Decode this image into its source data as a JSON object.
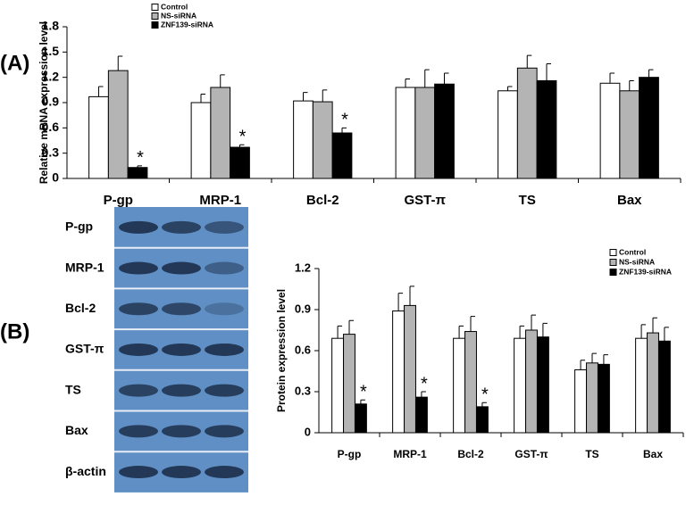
{
  "panels": {
    "a": "(A)",
    "b": "(B)"
  },
  "blot": {
    "labels": [
      "P-gp",
      "MRP-1",
      "Bcl-2",
      "GST-π",
      "TS",
      "Bax",
      "β-actin"
    ]
  },
  "chart_data": [
    {
      "type": "bar",
      "ylabel": "Relative mRNA expression level",
      "categories": [
        "P-gp",
        "MRP-1",
        "Bcl-2",
        "GST-π",
        "TS",
        "Bax"
      ],
      "ylim": [
        0,
        1.8
      ],
      "yticks": [
        0,
        0.3,
        0.6,
        0.9,
        1.2,
        1.5,
        1.8
      ],
      "legend": "upper left",
      "series": [
        {
          "name": "Control",
          "color": "#ffffff",
          "values": [
            0.97,
            0.9,
            0.92,
            1.08,
            1.04,
            1.13
          ],
          "errors": [
            0.12,
            0.1,
            0.1,
            0.1,
            0.05,
            0.12
          ]
        },
        {
          "name": "NS-siRNA",
          "color": "#b4b4b4",
          "values": [
            1.28,
            1.08,
            0.91,
            1.08,
            1.31,
            1.04
          ],
          "errors": [
            0.17,
            0.15,
            0.14,
            0.21,
            0.15,
            0.12
          ]
        },
        {
          "name": "ZNF139-siRNA",
          "color": "#000000",
          "values": [
            0.13,
            0.37,
            0.54,
            1.12,
            1.16,
            1.2
          ],
          "errors": [
            0.02,
            0.03,
            0.06,
            0.13,
            0.2,
            0.09
          ],
          "annotations": [
            "*",
            "*",
            "*",
            null,
            null,
            null
          ]
        }
      ]
    },
    {
      "type": "bar",
      "ylabel": "Protein expression level",
      "categories": [
        "P-gp",
        "MRP-1",
        "Bcl-2",
        "GST-π",
        "TS",
        "Bax"
      ],
      "ylim": [
        0,
        1.2
      ],
      "yticks": [
        0,
        0.3,
        0.6,
        0.9,
        1.2
      ],
      "legend": "upper right",
      "series": [
        {
          "name": "Control",
          "color": "#ffffff",
          "values": [
            0.69,
            0.89,
            0.69,
            0.69,
            0.46,
            0.69
          ],
          "errors": [
            0.09,
            0.13,
            0.09,
            0.09,
            0.07,
            0.1
          ]
        },
        {
          "name": "NS-siRNA",
          "color": "#b4b4b4",
          "values": [
            0.72,
            0.93,
            0.74,
            0.75,
            0.51,
            0.73
          ],
          "errors": [
            0.1,
            0.14,
            0.11,
            0.11,
            0.07,
            0.11
          ]
        },
        {
          "name": "ZNF139-siRNA",
          "color": "#000000",
          "values": [
            0.21,
            0.26,
            0.19,
            0.7,
            0.5,
            0.67
          ],
          "errors": [
            0.03,
            0.04,
            0.03,
            0.1,
            0.07,
            0.1
          ],
          "annotations": [
            "*",
            "*",
            "*",
            null,
            null,
            null
          ]
        }
      ]
    }
  ]
}
